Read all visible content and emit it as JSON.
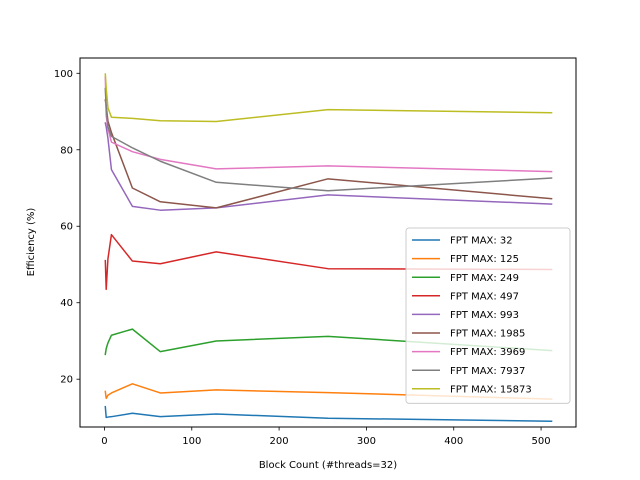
{
  "chart_data": {
    "type": "line",
    "title": "",
    "xlabel": "Block Count (#threads=32)",
    "ylabel": "Efficiency (%)",
    "xlim": [
      -28,
      540
    ],
    "ylim": [
      7.5,
      104
    ],
    "xticks": [
      0,
      100,
      200,
      300,
      400,
      500
    ],
    "yticks": [
      20,
      40,
      60,
      80,
      100
    ],
    "grid": false,
    "legend_position": "lower right",
    "x": [
      1,
      2,
      4,
      8,
      32,
      64,
      128,
      256,
      512
    ],
    "series": [
      {
        "name": "FPT MAX: 32",
        "color": "#1f77b4",
        "values": [
          12.8,
          10.0,
          10.1,
          10.2,
          11.1,
          10.2,
          10.9,
          9.8,
          9.0
        ]
      },
      {
        "name": "FPT MAX: 125",
        "color": "#ff7f0e",
        "values": [
          16.8,
          15.0,
          15.8,
          16.4,
          18.8,
          16.4,
          17.2,
          16.5,
          14.8
        ]
      },
      {
        "name": "FPT MAX: 249",
        "color": "#2ca02c",
        "values": [
          26.5,
          28.0,
          29.5,
          31.5,
          33.1,
          27.2,
          30.0,
          31.2,
          27.5
        ]
      },
      {
        "name": "FPT MAX: 497",
        "color": "#d62728",
        "values": [
          51.0,
          43.5,
          51.5,
          57.8,
          50.9,
          50.2,
          53.3,
          48.9,
          48.7
        ]
      },
      {
        "name": "FPT MAX: 993",
        "color": "#9467bd",
        "values": [
          87.0,
          86.0,
          83.0,
          74.8,
          65.2,
          64.2,
          64.8,
          68.2,
          65.8
        ]
      },
      {
        "name": "FPT MAX: 1985",
        "color": "#8c564b",
        "values": [
          93.0,
          91.5,
          87.5,
          84.5,
          70.0,
          66.4,
          64.8,
          72.4,
          67.2
        ]
      },
      {
        "name": "FPT MAX: 3969",
        "color": "#e377c2",
        "values": [
          99.0,
          89.0,
          85.5,
          82.0,
          79.5,
          77.5,
          75.0,
          75.8,
          74.3
        ]
      },
      {
        "name": "FPT MAX: 7937",
        "color": "#7f7f7f",
        "values": [
          96.0,
          91.0,
          86.0,
          83.5,
          80.5,
          77.0,
          71.5,
          69.3,
          72.6
        ]
      },
      {
        "name": "FPT MAX: 15873",
        "color": "#bcbd22",
        "values": [
          99.8,
          96.0,
          91.0,
          88.5,
          88.2,
          87.6,
          87.4,
          90.5,
          89.7
        ]
      }
    ]
  }
}
